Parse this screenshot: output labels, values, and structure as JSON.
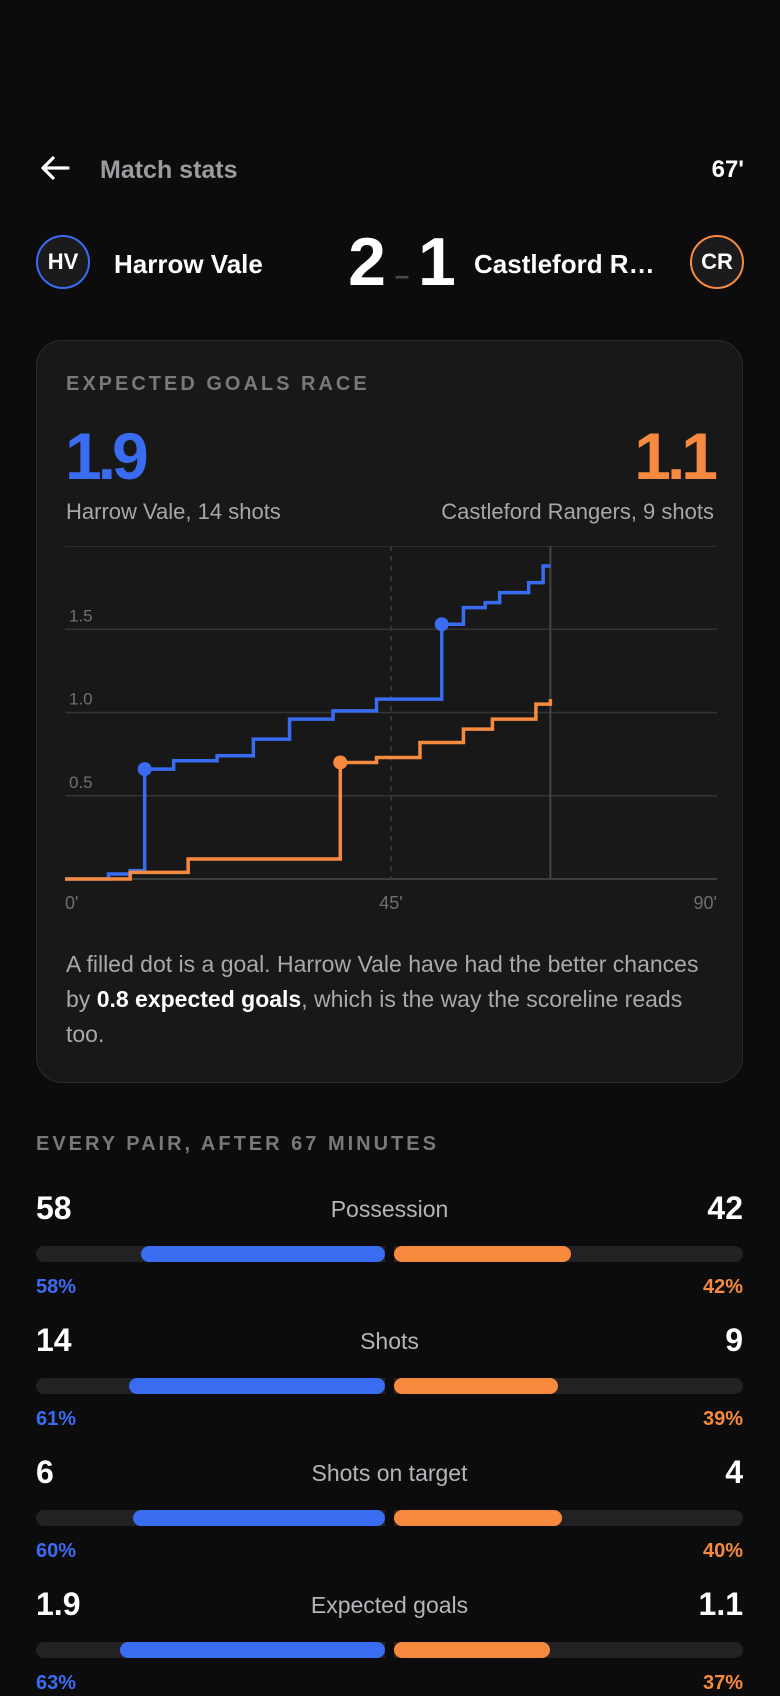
{
  "header": {
    "title": "Match stats",
    "minute": "67'",
    "back_icon": "arrow-left-icon"
  },
  "match": {
    "home": {
      "badge": "HV",
      "name": "Harrow Vale",
      "score": "2",
      "color": "#3a6cf2"
    },
    "away": {
      "badge": "CR",
      "name": "Castleford Ra...",
      "score": "1",
      "color": "#f78a3f"
    },
    "separator": "–"
  },
  "xg_card": {
    "title": "EXPECTED GOALS RACE",
    "home_xg": "1.9",
    "away_xg": "1.1",
    "home_sub": "Harrow Vale, 14 shots",
    "away_sub": "Castleford Rangers, 9 shots",
    "caption_pre": "A filled dot is a goal. Harrow Vale have had the better chances by ",
    "caption_bold": "0.8 expected goals",
    "caption_post": ", which is the way the scoreline reads too."
  },
  "chart_data": {
    "type": "line",
    "step": true,
    "x_ticks": [
      "0'",
      "45'",
      "90'"
    ],
    "y_ticks": [
      "0.5",
      "1.0",
      "1.5"
    ],
    "xlim": [
      0,
      90
    ],
    "ylim": [
      0,
      2.0
    ],
    "grid": true,
    "current_minute": 67,
    "halftime_marker": 45,
    "series": [
      {
        "name": "Harrow Vale",
        "color": "#3a6cf2",
        "points": [
          [
            0,
            0
          ],
          [
            6,
            0.03
          ],
          [
            9,
            0.05
          ],
          [
            11,
            0.66
          ],
          [
            15,
            0.71
          ],
          [
            21,
            0.74
          ],
          [
            26,
            0.84
          ],
          [
            31,
            0.96
          ],
          [
            37,
            1.01
          ],
          [
            43,
            1.08
          ],
          [
            52,
            1.53
          ],
          [
            55,
            1.63
          ],
          [
            58,
            1.66
          ],
          [
            60,
            1.72
          ],
          [
            64,
            1.78
          ],
          [
            66,
            1.88
          ],
          [
            67,
            1.88
          ]
        ],
        "goals": [
          [
            11,
            0.66
          ],
          [
            52,
            1.53
          ]
        ]
      },
      {
        "name": "Castleford Rangers",
        "color": "#f78a3f",
        "points": [
          [
            0,
            0
          ],
          [
            9,
            0.04
          ],
          [
            17,
            0.12
          ],
          [
            38,
            0.7
          ],
          [
            43,
            0.73
          ],
          [
            49,
            0.82
          ],
          [
            55,
            0.9
          ],
          [
            59,
            0.96
          ],
          [
            65,
            1.05
          ],
          [
            67,
            1.08
          ]
        ],
        "goals": [
          [
            38,
            0.7
          ]
        ]
      }
    ]
  },
  "stats_section": {
    "title": "EVERY PAIR, AFTER 67 MINUTES",
    "rows": [
      {
        "label": "Possession",
        "home": "58",
        "away": "42",
        "home_pct": "58%",
        "away_pct": "42%",
        "home_share": 0.58,
        "away_share": 0.42
      },
      {
        "label": "Shots",
        "home": "14",
        "away": "9",
        "home_pct": "61%",
        "away_pct": "39%",
        "home_share": 0.61,
        "away_share": 0.39
      },
      {
        "label": "Shots on target",
        "home": "6",
        "away": "4",
        "home_pct": "60%",
        "away_pct": "40%",
        "home_share": 0.6,
        "away_share": 0.4
      },
      {
        "label": "Expected goals",
        "home": "1.9",
        "away": "1.1",
        "home_pct": "63%",
        "away_pct": "37%",
        "home_share": 0.63,
        "away_share": 0.37
      }
    ]
  }
}
